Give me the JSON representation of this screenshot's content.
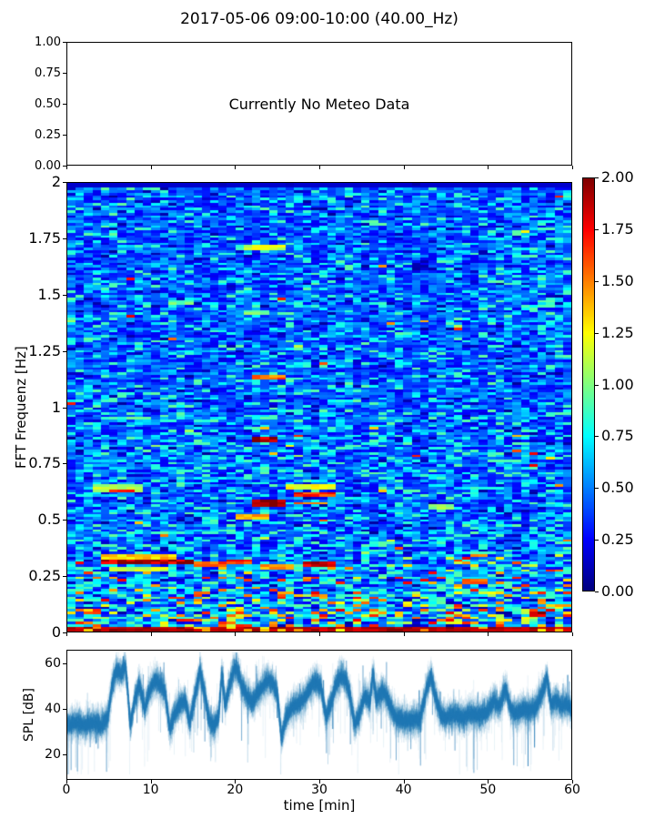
{
  "title": "2017-05-06 09:00-10:00 (40.00_Hz)",
  "chart_data": [
    {
      "type": "empty",
      "panel": "meteo",
      "annotation": "Currently No Meteo Data",
      "xlim": [
        0,
        60
      ],
      "ylim": [
        0,
        1
      ],
      "xticks": [
        0,
        10,
        20,
        30,
        40,
        50,
        60
      ],
      "xtick_labels_shown": false,
      "yticks": [
        0,
        0.25,
        0.5,
        0.75,
        1
      ],
      "ytick_labels": [
        "0.00",
        "0.25",
        "0.50",
        "0.75",
        "1.00"
      ],
      "grid": false
    },
    {
      "type": "heatmap",
      "panel": "spectrogram",
      "ylabel": "FFT Frequenz [Hz]",
      "xlim": [
        0,
        60
      ],
      "ylim": [
        0,
        2
      ],
      "xticks": [
        0,
        10,
        20,
        30,
        40,
        50,
        60
      ],
      "xtick_labels_shown": false,
      "yticks": [
        0,
        0.25,
        0.5,
        0.75,
        1,
        1.25,
        1.5,
        1.75,
        2
      ],
      "ytick_labels": [
        "0",
        "0.25",
        "0.5",
        "0.75",
        "1",
        "1.25",
        "1.5",
        "1.75",
        "2"
      ],
      "colormap": "jet",
      "vmin": 0,
      "vmax": 2,
      "colorbar_ticks": [
        0,
        0.25,
        0.5,
        0.75,
        1,
        1.25,
        1.5,
        1.75,
        2
      ],
      "colorbar_tick_labels": [
        "0.00",
        "0.25",
        "0.50",
        "0.75",
        "1.00",
        "1.25",
        "1.50",
        "1.75",
        "2.00"
      ],
      "colormap_stops": [
        {
          "pos": 0.0,
          "color": "#000080"
        },
        {
          "pos": 0.125,
          "color": "#0000ff"
        },
        {
          "pos": 0.375,
          "color": "#00ffff"
        },
        {
          "pos": 0.5,
          "color": "#7cff79"
        },
        {
          "pos": 0.625,
          "color": "#ffff00"
        },
        {
          "pos": 0.875,
          "color": "#ff0000"
        },
        {
          "pos": 1.0,
          "color": "#800000"
        }
      ],
      "grid": {
        "cols": 60,
        "rows": 180
      },
      "seed": 42,
      "noise": {
        "description": "mostly blue background 0.2-0.6 with scattered cyan segments; hotness (yellow/orange/red) increases toward 0 Hz; bottom rows near 0 Hz saturated dark red ~2.0; extra hot cells for t>45min below 0.35Hz and t 13-35min below 0.2Hz; thin near-black row at 2 Hz",
        "blue_base": [
          0.22,
          0.6
        ],
        "col_variation": [
          0.8,
          1.2
        ],
        "cyan_prob_by_freq": [
          [
            0.15,
            0.55
          ],
          [
            0.3,
            0.5
          ],
          [
            0.5,
            0.38
          ],
          [
            1.0,
            0.3
          ],
          [
            2.0,
            0.22
          ]
        ],
        "cyan_range": [
          0.55,
          0.95
        ],
        "hot_prob_by_freq": [
          [
            0.1,
            0.28
          ],
          [
            0.2,
            0.12
          ],
          [
            0.3,
            0.06
          ],
          [
            0.5,
            0.02
          ],
          [
            1.0,
            0.008
          ],
          [
            2.0,
            0.004
          ]
        ],
        "hot_range": [
          1.05,
          1.8
        ],
        "hot_boost_right": 0.12,
        "hot_boost_mid": 0.08,
        "dark_prob": 0.07,
        "dark_range": [
          0.05,
          0.25
        ],
        "bottom_band_freq": 0.025,
        "bottom_band_value": [
          1.8,
          2.0
        ],
        "top_row_max": 0.15
      },
      "features": [
        {
          "t0": 4.5,
          "t1": 14.5,
          "f": 0.31,
          "w": 0.013,
          "v": 1.9
        },
        {
          "t0": 4.5,
          "t1": 13,
          "f": 0.335,
          "w": 0.009,
          "v": 1.35
        },
        {
          "t0": 5,
          "t1": 12,
          "f": 0.28,
          "w": 0.009,
          "v": 1.15
        },
        {
          "t0": 15.5,
          "t1": 18.5,
          "f": 0.305,
          "w": 0.011,
          "v": 1.6
        },
        {
          "t0": 19.5,
          "t1": 22,
          "f": 0.31,
          "w": 0.011,
          "v": 1.7
        },
        {
          "t0": 23,
          "t1": 27,
          "f": 0.285,
          "w": 0.011,
          "v": 1.4
        },
        {
          "t0": 28,
          "t1": 31.5,
          "f": 0.3,
          "w": 0.011,
          "v": 1.8
        },
        {
          "t0": 22,
          "t1": 26,
          "f": 0.57,
          "w": 0.018,
          "v": 2.0
        },
        {
          "t0": 20,
          "t1": 23.5,
          "f": 0.515,
          "w": 0.01,
          "v": 1.45
        },
        {
          "t0": 27.5,
          "t1": 32,
          "f": 0.61,
          "w": 0.011,
          "v": 1.7
        },
        {
          "t0": 27.5,
          "t1": 31,
          "f": 0.575,
          "w": 0.007,
          "v": 1.55
        },
        {
          "t0": 26,
          "t1": 31.5,
          "f": 0.645,
          "w": 0.009,
          "v": 1.2
        },
        {
          "t0": 22,
          "t1": 25,
          "f": 0.86,
          "w": 0.012,
          "v": 1.9
        },
        {
          "t0": 22,
          "t1": 26,
          "f": 1.13,
          "w": 0.011,
          "v": 1.55
        },
        {
          "t0": 21.5,
          "t1": 26,
          "f": 1.71,
          "w": 0.011,
          "v": 1.15
        },
        {
          "t0": 12,
          "t1": 14.5,
          "f": 1.47,
          "w": 0.009,
          "v": 0.95
        },
        {
          "t0": 21.5,
          "t1": 24,
          "f": 1.42,
          "w": 0.009,
          "v": 1.0
        },
        {
          "t0": 3.5,
          "t1": 8.5,
          "f": 0.635,
          "w": 0.016,
          "v": 1.1
        },
        {
          "t0": 5,
          "t1": 7.5,
          "f": 0.625,
          "w": 0.005,
          "v": 1.6
        },
        {
          "t0": 5,
          "t1": 10,
          "f": 0.95,
          "w": 0.008,
          "v": 0.9
        },
        {
          "t0": 43,
          "t1": 46,
          "f": 0.56,
          "w": 0.012,
          "v": 1.05
        },
        {
          "t0": 47,
          "t1": 49.5,
          "f": 0.22,
          "w": 0.009,
          "v": 1.55
        },
        {
          "t0": 55,
          "t1": 57,
          "f": 0.08,
          "w": 0.01,
          "v": 1.95
        }
      ]
    },
    {
      "type": "line",
      "panel": "spl",
      "xlabel": "time [min]",
      "ylabel": "SPL [dB]",
      "xlim": [
        0,
        60
      ],
      "ylim": [
        9,
        66
      ],
      "xticks": [
        0,
        10,
        20,
        30,
        40,
        50,
        60
      ],
      "xtick_labels": [
        "0",
        "10",
        "20",
        "30",
        "40",
        "50",
        "60"
      ],
      "yticks": [
        20,
        40,
        60
      ],
      "ytick_labels": [
        "20",
        "40",
        "60"
      ],
      "color": "#1f77b4",
      "seed": 7,
      "noise_db": 5.5,
      "envelope": [
        [
          0,
          33
        ],
        [
          1,
          34
        ],
        [
          2,
          33
        ],
        [
          3,
          34
        ],
        [
          4,
          33
        ],
        [
          4.8,
          36
        ],
        [
          5.4,
          52
        ],
        [
          5.8,
          57
        ],
        [
          6.4,
          56
        ],
        [
          6.9,
          59
        ],
        [
          7.2,
          48
        ],
        [
          7.5,
          33
        ],
        [
          8,
          44
        ],
        [
          8.6,
          51
        ],
        [
          9.2,
          40
        ],
        [
          9.8,
          48
        ],
        [
          10.4,
          53
        ],
        [
          11,
          51
        ],
        [
          11.6,
          48
        ],
        [
          12.2,
          31
        ],
        [
          12.8,
          38
        ],
        [
          13.4,
          42
        ],
        [
          14,
          44
        ],
        [
          14.6,
          34
        ],
        [
          15.2,
          46
        ],
        [
          15.8,
          57
        ],
        [
          16.4,
          46
        ],
        [
          16.9,
          35
        ],
        [
          17.4,
          33
        ],
        [
          18,
          36
        ],
        [
          18.4,
          56
        ],
        [
          18.8,
          42
        ],
        [
          19.4,
          52
        ],
        [
          19.9,
          58
        ],
        [
          20.3,
          57
        ],
        [
          20.8,
          50
        ],
        [
          21.4,
          46
        ],
        [
          22,
          43
        ],
        [
          22.6,
          47
        ],
        [
          23.2,
          50
        ],
        [
          23.9,
          53
        ],
        [
          24.5,
          51
        ],
        [
          25,
          47
        ],
        [
          25.5,
          27
        ],
        [
          26,
          36
        ],
        [
          26.6,
          40
        ],
        [
          27.2,
          42
        ],
        [
          27.8,
          43
        ],
        [
          28.4,
          46
        ],
        [
          29,
          50
        ],
        [
          29.6,
          52
        ],
        [
          30.2,
          50
        ],
        [
          30.8,
          36
        ],
        [
          31.4,
          43
        ],
        [
          32,
          51
        ],
        [
          32.6,
          55
        ],
        [
          33.2,
          53
        ],
        [
          33.7,
          45
        ],
        [
          34.2,
          33
        ],
        [
          34.8,
          38
        ],
        [
          35.4,
          46
        ],
        [
          36,
          43
        ],
        [
          36.4,
          56
        ],
        [
          36.8,
          44
        ],
        [
          37.4,
          48
        ],
        [
          38,
          46
        ],
        [
          38.6,
          40
        ],
        [
          39.2,
          36
        ],
        [
          40,
          35
        ],
        [
          41,
          35
        ],
        [
          42,
          36
        ],
        [
          42.8,
          49
        ],
        [
          43.3,
          55
        ],
        [
          43.8,
          46
        ],
        [
          44.4,
          38
        ],
        [
          45,
          36
        ],
        [
          46,
          38
        ],
        [
          47,
          36
        ],
        [
          48,
          38
        ],
        [
          49,
          37
        ],
        [
          50,
          39
        ],
        [
          50.8,
          44
        ],
        [
          51.4,
          41
        ],
        [
          52.2,
          49
        ],
        [
          52.8,
          40
        ],
        [
          53.5,
          38
        ],
        [
          54.2,
          40
        ],
        [
          55,
          39
        ],
        [
          55.8,
          41
        ],
        [
          56.6,
          48
        ],
        [
          57.1,
          54
        ],
        [
          57.6,
          42
        ],
        [
          58.2,
          44
        ],
        [
          58.8,
          41
        ],
        [
          59.4,
          42
        ],
        [
          60,
          40
        ]
      ]
    }
  ]
}
